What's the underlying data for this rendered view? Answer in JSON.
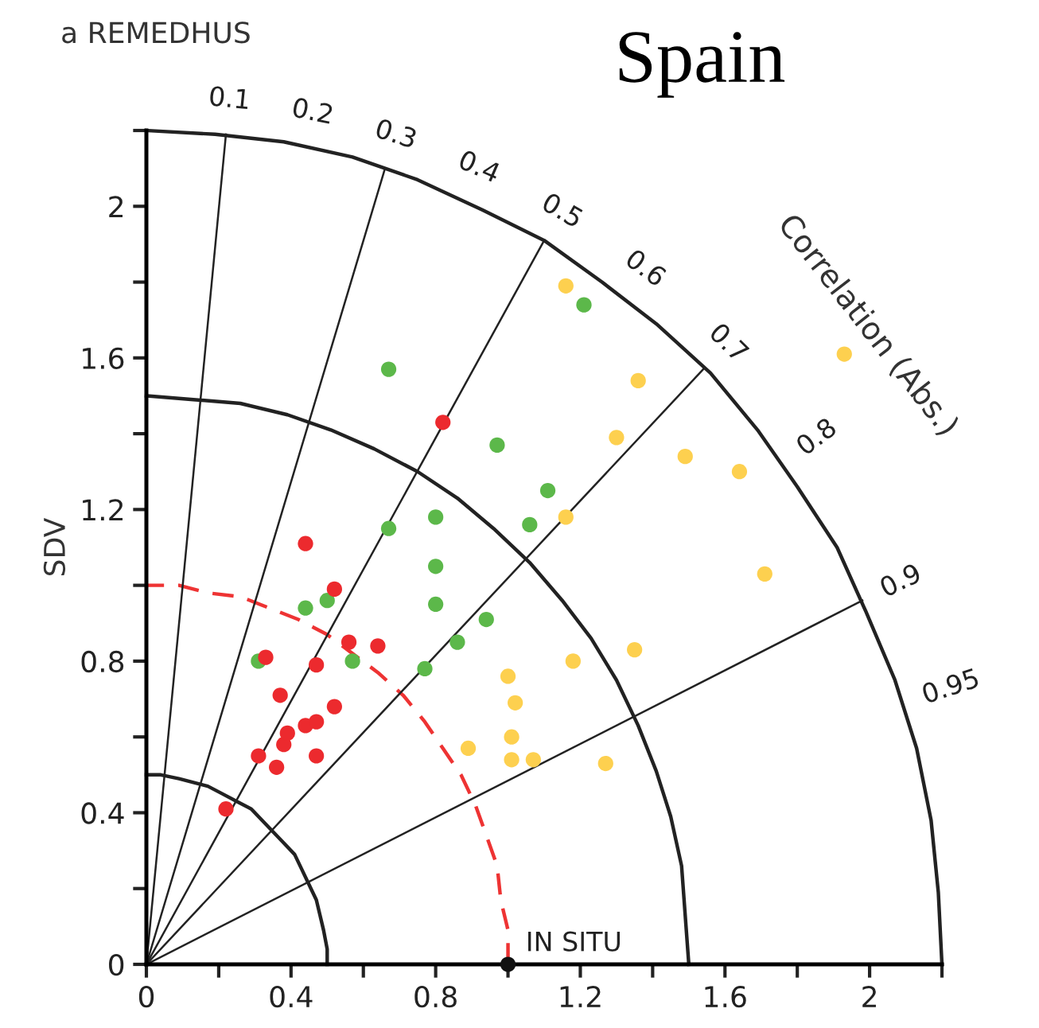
{
  "chart_data": {
    "type": "scatter",
    "title": "a REMEDHUS",
    "subtitle": "Spain",
    "ylabel": "SDV",
    "xlim": [
      0,
      2.2
    ],
    "ylim": [
      0,
      2.2
    ],
    "xticks": [
      0,
      {
        "value": 0.2,
        "label": null
      },
      0.4,
      {
        "value": 0.6,
        "label": null
      },
      0.8,
      {
        "value": 1.0,
        "label": null
      },
      1.2,
      {
        "value": 1.4,
        "label": null
      },
      1.6,
      {
        "value": 1.8,
        "label": null
      },
      2,
      {
        "value": 2.2,
        "label": null
      }
    ],
    "yticks": [
      0,
      {
        "value": 0.2,
        "label": null
      },
      0.4,
      {
        "value": 0.6,
        "label": null
      },
      0.8,
      {
        "value": 1.0,
        "label": null
      },
      1.2,
      {
        "value": 1.4,
        "label": null
      },
      1.6,
      {
        "value": 1.8,
        "label": null
      },
      2,
      {
        "value": 2.2,
        "label": null
      }
    ],
    "grid": false,
    "marker": "circle",
    "annotations": [
      "Correlation (Abs.)",
      {
        "text": "IN SITU",
        "x": 1,
        "y": 0
      },
      {
        "text": "0.1",
        "x": 0.22,
        "y": 2.189
      },
      {
        "text": "0.2",
        "x": 0.44,
        "y": 2.156
      },
      {
        "text": "0.3",
        "x": 0.66,
        "y": 2.099
      },
      {
        "text": "0.4",
        "x": 0.88,
        "y": 2.016
      },
      {
        "text": "0.5",
        "x": 1.1,
        "y": 1.905
      },
      {
        "text": "0.6",
        "x": 1.32,
        "y": 1.76
      },
      {
        "text": "0.7",
        "x": 1.54,
        "y": 1.571
      },
      {
        "text": "0.8",
        "x": 1.76,
        "y": 1.32
      },
      {
        "text": "0.9",
        "x": 1.98,
        "y": 0.959
      },
      {
        "text": "0.95",
        "x": 2.09,
        "y": 0.687
      }
    ],
    "series": [
      {
        "type": "line",
        "marker": "none",
        "color": "#222222",
        "x": [
          0.5,
          0.5,
          0.49,
          0.48,
          0.47,
          0.45,
          0.43,
          0.41,
          0.38,
          0.35,
          0.32,
          0.29,
          0.25,
          0.21,
          0.17,
          0.13,
          0.09,
          0.04,
          0
        ],
        "values": [
          0,
          0.04,
          0.09,
          0.13,
          0.17,
          0.21,
          0.25,
          0.29,
          0.32,
          0.35,
          0.38,
          0.41,
          0.43,
          0.45,
          0.47,
          0.48,
          0.49,
          0.5,
          0.5
        ]
      },
      {
        "type": "line",
        "marker": "none",
        "color": "#222222",
        "x": [
          1.5,
          1.49,
          1.48,
          1.45,
          1.41,
          1.36,
          1.3,
          1.23,
          1.15,
          1.06,
          0.96,
          0.86,
          0.75,
          0.63,
          0.51,
          0.39,
          0.26,
          0.13,
          0
        ],
        "values": [
          0,
          0.13,
          0.26,
          0.39,
          0.51,
          0.63,
          0.75,
          0.86,
          0.96,
          1.06,
          1.15,
          1.23,
          1.3,
          1.36,
          1.41,
          1.45,
          1.48,
          1.49,
          1.5
        ]
      },
      {
        "type": "line",
        "marker": "none",
        "color": "#222222",
        "x": [
          2.2,
          2.19,
          2.17,
          2.13,
          2.07,
          1.99,
          1.91,
          1.8,
          1.69,
          1.56,
          1.41,
          1.26,
          1.1,
          0.93,
          0.75,
          0.57,
          0.38,
          0.19,
          0
        ],
        "values": [
          0,
          0.19,
          0.38,
          0.57,
          0.75,
          0.93,
          1.1,
          1.26,
          1.41,
          1.56,
          1.69,
          1.8,
          1.91,
          1.99,
          2.07,
          2.13,
          2.17,
          2.19,
          2.2
        ]
      },
      {
        "type": "line",
        "marker": "none",
        "color": "#ee3333",
        "line_style": "dashed",
        "x": [
          1,
          1,
          0.98,
          0.97,
          0.94,
          0.91,
          0.87,
          0.82,
          0.77,
          0.71,
          0.64,
          0.57,
          0.5,
          0.42,
          0.34,
          0.26,
          0.17,
          0.09,
          0
        ],
        "values": [
          0,
          0.09,
          0.17,
          0.26,
          0.34,
          0.42,
          0.5,
          0.57,
          0.64,
          0.71,
          0.77,
          0.82,
          0.87,
          0.91,
          0.94,
          0.97,
          0.98,
          1,
          1
        ]
      },
      {
        "type": "line",
        "marker": "none",
        "color": "#222222",
        "x": [
          0,
          0.22
        ],
        "values": [
          0,
          2.19
        ]
      },
      {
        "type": "line",
        "marker": "none",
        "color": "#222222",
        "x": [
          0,
          0.66
        ],
        "values": [
          0,
          2.1
        ]
      },
      {
        "type": "line",
        "marker": "none",
        "color": "#222222",
        "x": [
          0,
          1.1
        ],
        "values": [
          0,
          1.91
        ]
      },
      {
        "type": "line",
        "marker": "none",
        "color": "#222222",
        "x": [
          0,
          1.54
        ],
        "values": [
          0,
          1.57
        ]
      },
      {
        "type": "line",
        "marker": "none",
        "color": "#222222",
        "x": [
          0,
          1.98
        ],
        "values": [
          0,
          0.96
        ]
      },
      {
        "color": "#5cb84a",
        "x": [
          0.31,
          0.44,
          0.5,
          0.57,
          0.77,
          0.86,
          0.94,
          0.8,
          0.8,
          0.67,
          0.8,
          1.06,
          1.11,
          0.97,
          0.67,
          1.21
        ],
        "values": [
          0.8,
          0.94,
          0.96,
          0.8,
          0.78,
          0.85,
          0.91,
          0.95,
          1.05,
          1.15,
          1.18,
          1.16,
          1.25,
          1.37,
          1.57,
          1.74
        ]
      },
      {
        "color": "#ec2a2e",
        "x": [
          0.22,
          0.31,
          0.33,
          0.36,
          0.37,
          0.38,
          0.39,
          0.44,
          0.47,
          0.47,
          0.47,
          0.52,
          0.56,
          0.64,
          0.52,
          0.44,
          0.82
        ],
        "values": [
          0.41,
          0.55,
          0.81,
          0.52,
          0.71,
          0.58,
          0.61,
          0.63,
          0.64,
          0.55,
          0.79,
          0.68,
          0.85,
          0.84,
          0.99,
          1.11,
          1.43
        ]
      },
      {
        "color": "#fdd04f",
        "x": [
          1.16,
          1.36,
          1.3,
          1.49,
          1.64,
          1.16,
          1.71,
          1.93,
          1.35,
          1.18,
          1.0,
          1.02,
          1.01,
          1.01,
          1.07,
          0.89,
          1.27
        ],
        "values": [
          1.79,
          1.54,
          1.39,
          1.34,
          1.3,
          1.18,
          1.03,
          1.61,
          0.83,
          0.8,
          0.76,
          0.69,
          0.6,
          0.54,
          0.54,
          0.57,
          0.53
        ]
      },
      {
        "color": "#111111",
        "x": [
          1
        ],
        "values": [
          0
        ]
      }
    ]
  }
}
